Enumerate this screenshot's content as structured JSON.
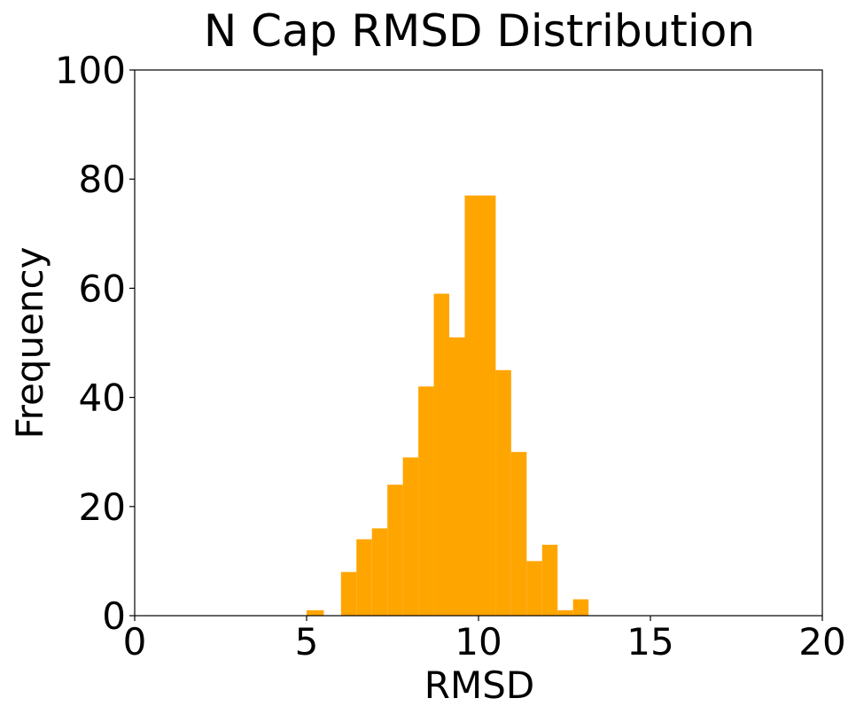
{
  "chart_data": {
    "type": "bar",
    "title": "N Cap RMSD Distribution",
    "xlabel": "RMSD",
    "ylabel": "Frequency",
    "xlim": [
      0,
      20
    ],
    "ylim": [
      0,
      100
    ],
    "x_ticks": [
      "0",
      "5",
      "10",
      "15",
      "20"
    ],
    "y_ticks": [
      "0",
      "20",
      "40",
      "60",
      "80",
      "100"
    ],
    "grid": false,
    "bar_color": "#ffa500",
    "bins": [
      {
        "x0": 5.0,
        "x1": 5.5,
        "count": 1
      },
      {
        "x0": 6.0,
        "x1": 6.45,
        "count": 8
      },
      {
        "x0": 6.45,
        "x1": 6.9,
        "count": 14
      },
      {
        "x0": 6.9,
        "x1": 7.35,
        "count": 16
      },
      {
        "x0": 7.35,
        "x1": 7.8,
        "count": 24
      },
      {
        "x0": 7.8,
        "x1": 8.25,
        "count": 29
      },
      {
        "x0": 8.25,
        "x1": 8.7,
        "count": 42
      },
      {
        "x0": 8.7,
        "x1": 9.15,
        "count": 59
      },
      {
        "x0": 9.15,
        "x1": 9.6,
        "count": 51
      },
      {
        "x0": 9.6,
        "x1": 10.5,
        "count": 77
      },
      {
        "x0": 10.5,
        "x1": 10.95,
        "count": 45
      },
      {
        "x0": 10.95,
        "x1": 11.4,
        "count": 30
      },
      {
        "x0": 11.4,
        "x1": 11.85,
        "count": 10
      },
      {
        "x0": 11.85,
        "x1": 12.3,
        "count": 13
      },
      {
        "x0": 12.3,
        "x1": 12.75,
        "count": 1
      },
      {
        "x0": 12.75,
        "x1": 13.2,
        "count": 3
      }
    ]
  }
}
